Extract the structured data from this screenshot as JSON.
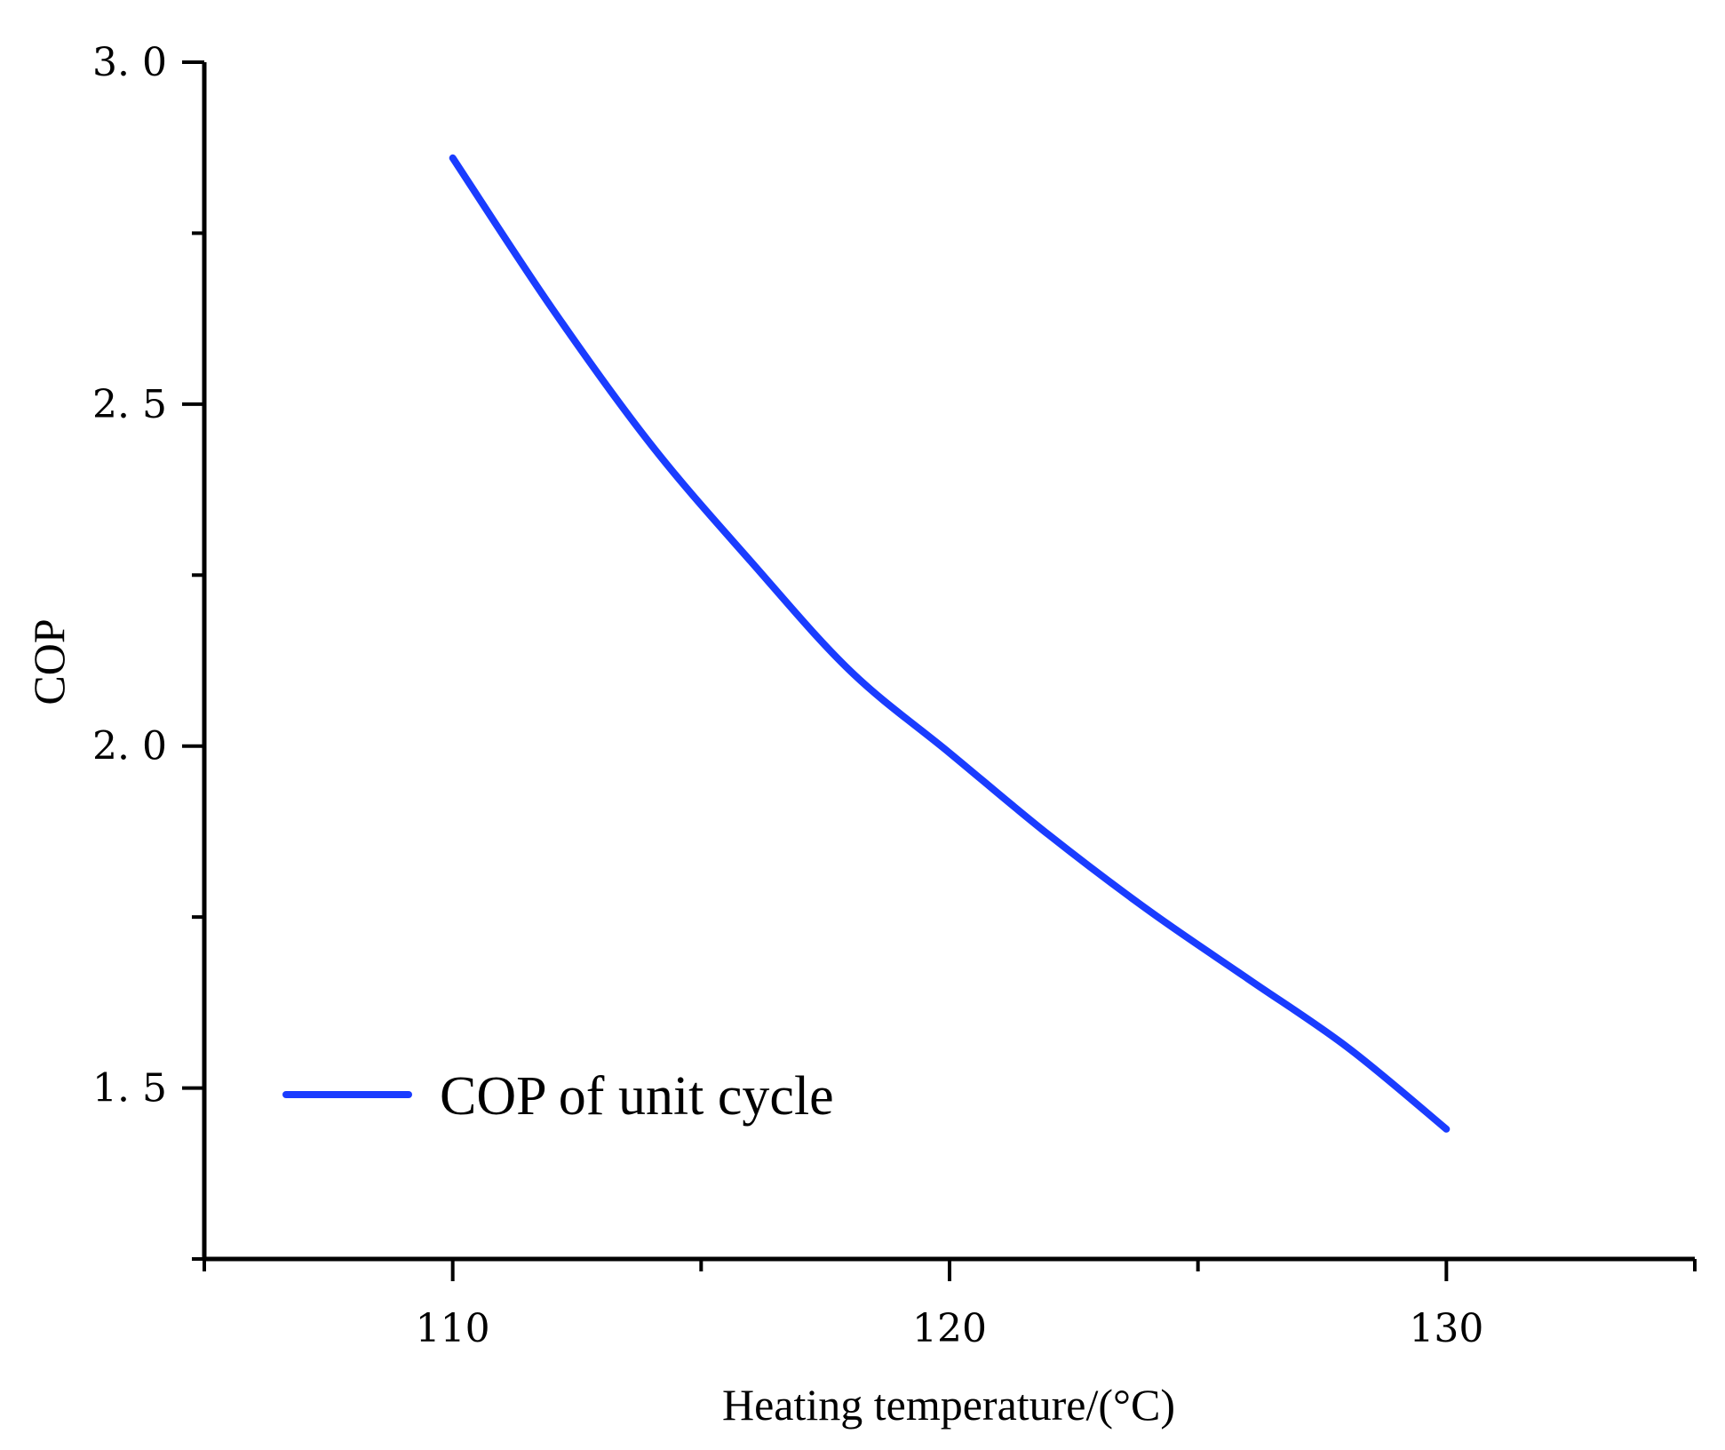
{
  "chart_data": {
    "type": "line",
    "title": "",
    "xlabel": "Heating temperature/(°C)",
    "ylabel": "COP",
    "xlim": [
      105,
      135
    ],
    "ylim": [
      1.25,
      3.0
    ],
    "x_ticks": [
      110,
      120,
      130
    ],
    "x_minor_ticks": [
      105,
      115,
      125,
      135
    ],
    "y_ticks": [
      1.5,
      2.0,
      2.5,
      3.0
    ],
    "y_tick_labels": [
      "1. 5",
      "2. 0",
      "2. 5",
      "3. 0"
    ],
    "y_minor_ticks": [
      1.25,
      1.75,
      2.25,
      2.75
    ],
    "grid": false,
    "legend_position": "bottom-left",
    "series": [
      {
        "name": "COP of unit cycle",
        "color": "#1a3cff",
        "x": [
          110,
          112,
          114,
          116,
          118,
          120,
          122,
          124,
          126,
          128,
          130
        ],
        "y": [
          2.86,
          2.64,
          2.44,
          2.27,
          2.11,
          1.99,
          1.87,
          1.76,
          1.66,
          1.56,
          1.44
        ]
      }
    ]
  }
}
